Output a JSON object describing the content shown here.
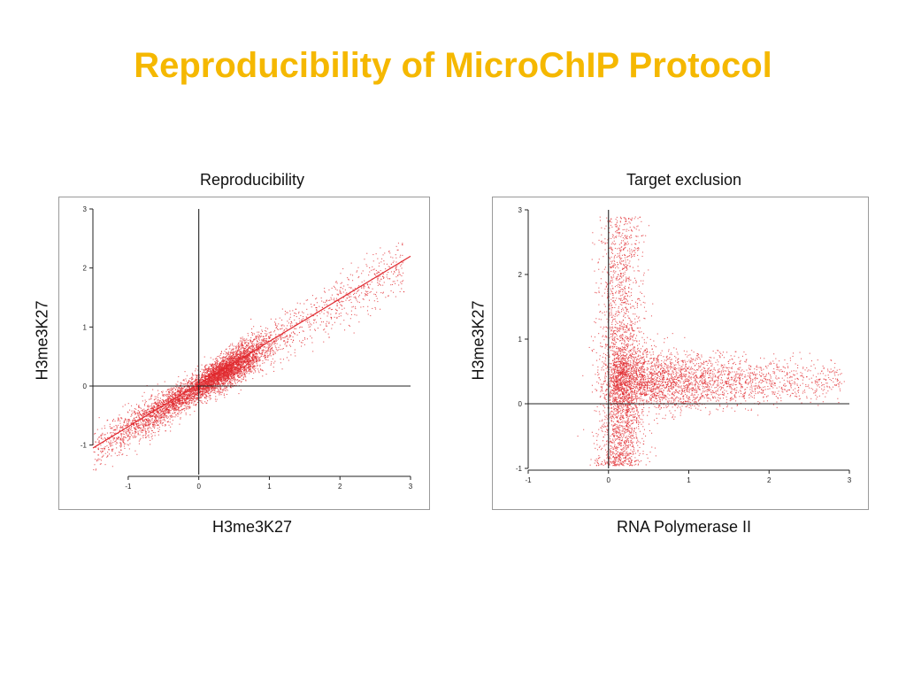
{
  "slide": {
    "title": "Reproducibility of MicroChIP Protocol"
  },
  "colors": {
    "title": "#F5B800",
    "points": "#E0282E",
    "fit_line": "#E0282E",
    "axes": "#222222",
    "frame": "#9a9a9a"
  },
  "chart_data": [
    {
      "type": "scatter",
      "title": "Reproducibility",
      "xlabel": "H3me3K27",
      "ylabel": "H3me3K27",
      "xlim": [
        -1.5,
        3
      ],
      "ylim": [
        -1.5,
        3
      ],
      "xticks": [
        -1,
        0,
        1,
        2,
        3
      ],
      "yticks": [
        -1,
        0,
        1,
        2,
        3
      ],
      "grid": false,
      "reference_lines": {
        "x": 0,
        "y": 0
      },
      "fit_line": {
        "x": [
          -1.5,
          3
        ],
        "y": [
          -1.05,
          2.2
        ]
      },
      "series": [
        {
          "x_range": [
            -1.5,
            2.9
          ],
          "y_range": [
            -1.1,
            2.5
          ],
          "trend": "linear",
          "slope": 0.72,
          "intercept": 0.0,
          "density_peak": [
            0.4,
            0.2
          ],
          "point_count": 6000
        }
      ]
    },
    {
      "type": "scatter",
      "title": "Target exclusion",
      "xlabel": "RNA Polymerase II",
      "ylabel": "H3me3K27",
      "xlim": [
        -1,
        3
      ],
      "ylim": [
        -1,
        3
      ],
      "xticks": [
        -1,
        0,
        1,
        2,
        3
      ],
      "yticks": [
        -1,
        0,
        1,
        2,
        3
      ],
      "grid": false,
      "reference_lines": {
        "x": 0,
        "y": 0
      },
      "series": [
        {
          "shape": "L-shaped",
          "vertical_arm": {
            "x_range": [
              -0.4,
              0.6
            ],
            "y_range": [
              -0.95,
              2.9
            ]
          },
          "horizontal_arm": {
            "x_range": [
              0.0,
              2.9
            ],
            "y_center": 0.35,
            "y_spread": 0.25
          },
          "point_count": 6000
        }
      ]
    }
  ]
}
